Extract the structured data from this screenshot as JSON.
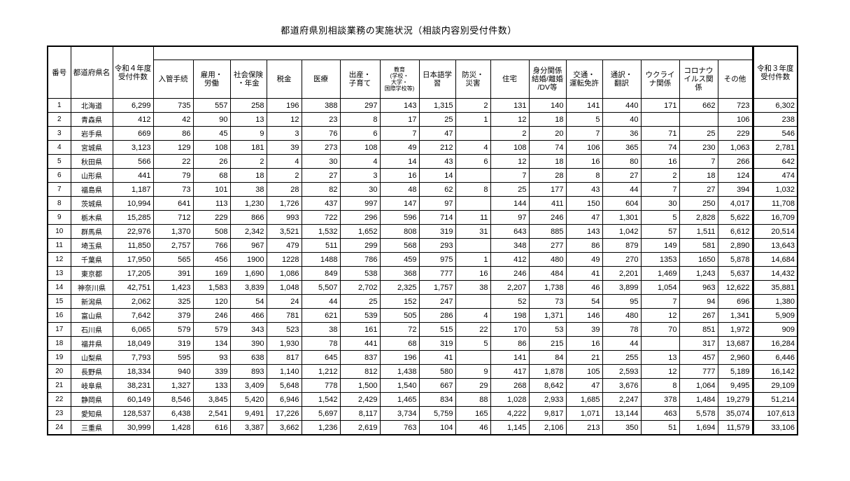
{
  "title": "都道府県別相談業務の実施状況（相談内容別受付件数）",
  "headers": {
    "no": "番号",
    "pref": "都道府県名",
    "r4": "令和４年度\n受付件数",
    "r3": "令和３年度\n受付件数",
    "categories": [
      "入管手続",
      "雇用・\n労働",
      "社会保険\n・年金",
      "税金",
      "医療",
      "出産・\n子育て",
      "教育\n(学校・\n大学・\n国際学校等)",
      "日本語学習",
      "防災・\n災害",
      "住宅",
      "身分関係\n結婚/離婚\n/DV等",
      "交通・\n運転免許",
      "通訳・\n翻訳",
      "ウクライ\nナ関係",
      "コロナウ\nイルス関\n係",
      "その他"
    ]
  },
  "rows": [
    [
      "1",
      "北海道",
      "6,299",
      "735",
      "557",
      "258",
      "196",
      "388",
      "297",
      "143",
      "1,315",
      "2",
      "131",
      "140",
      "141",
      "440",
      "171",
      "662",
      "723",
      "6,302"
    ],
    [
      "2",
      "青森県",
      "412",
      "42",
      "90",
      "13",
      "12",
      "23",
      "8",
      "17",
      "25",
      "1",
      "12",
      "18",
      "5",
      "40",
      "",
      "",
      "106",
      "238"
    ],
    [
      "3",
      "岩手県",
      "669",
      "86",
      "45",
      "9",
      "3",
      "76",
      "6",
      "7",
      "47",
      "",
      "2",
      "20",
      "7",
      "36",
      "71",
      "25",
      "229",
      "546"
    ],
    [
      "4",
      "宮城県",
      "3,123",
      "129",
      "108",
      "181",
      "39",
      "273",
      "108",
      "49",
      "212",
      "4",
      "108",
      "74",
      "106",
      "365",
      "74",
      "230",
      "1,063",
      "2,781"
    ],
    [
      "5",
      "秋田県",
      "566",
      "22",
      "26",
      "2",
      "4",
      "30",
      "4",
      "14",
      "43",
      "6",
      "12",
      "18",
      "16",
      "80",
      "16",
      "7",
      "266",
      "642"
    ],
    [
      "6",
      "山形県",
      "441",
      "79",
      "68",
      "18",
      "2",
      "27",
      "3",
      "16",
      "14",
      "",
      "7",
      "28",
      "8",
      "27",
      "2",
      "18",
      "124",
      "474"
    ],
    [
      "7",
      "福島県",
      "1,187",
      "73",
      "101",
      "38",
      "28",
      "82",
      "30",
      "48",
      "62",
      "8",
      "25",
      "177",
      "43",
      "44",
      "7",
      "27",
      "394",
      "1,032"
    ],
    [
      "8",
      "茨城県",
      "10,994",
      "641",
      "113",
      "1,230",
      "1,726",
      "437",
      "997",
      "147",
      "97",
      "",
      "144",
      "411",
      "150",
      "604",
      "30",
      "250",
      "4,017",
      "11,708"
    ],
    [
      "9",
      "栃木県",
      "15,285",
      "712",
      "229",
      "866",
      "993",
      "722",
      "296",
      "596",
      "714",
      "11",
      "97",
      "246",
      "47",
      "1,301",
      "5",
      "2,828",
      "5,622",
      "16,709"
    ],
    [
      "10",
      "群馬県",
      "22,976",
      "1,370",
      "508",
      "2,342",
      "3,521",
      "1,532",
      "1,652",
      "808",
      "319",
      "31",
      "643",
      "885",
      "143",
      "1,042",
      "57",
      "1,511",
      "6,612",
      "20,514"
    ],
    [
      "11",
      "埼玉県",
      "11,850",
      "2,757",
      "766",
      "967",
      "479",
      "511",
      "299",
      "568",
      "293",
      "",
      "348",
      "277",
      "86",
      "879",
      "149",
      "581",
      "2,890",
      "13,643"
    ],
    [
      "12",
      "千葉県",
      "17,950",
      "565",
      "456",
      "1900",
      "1228",
      "1488",
      "786",
      "459",
      "975",
      "1",
      "412",
      "480",
      "49",
      "270",
      "1353",
      "1650",
      "5,878",
      "14,684"
    ],
    [
      "13",
      "東京都",
      "17,205",
      "391",
      "169",
      "1,690",
      "1,086",
      "849",
      "538",
      "368",
      "777",
      "16",
      "246",
      "484",
      "41",
      "2,201",
      "1,469",
      "1,243",
      "5,637",
      "14,432"
    ],
    [
      "14",
      "神奈川県",
      "42,751",
      "1,423",
      "1,583",
      "3,839",
      "1,048",
      "5,507",
      "2,702",
      "2,325",
      "1,757",
      "38",
      "2,207",
      "1,738",
      "46",
      "3,899",
      "1,054",
      "963",
      "12,622",
      "35,881"
    ],
    [
      "15",
      "新潟県",
      "2,062",
      "325",
      "120",
      "54",
      "24",
      "44",
      "25",
      "152",
      "247",
      "",
      "52",
      "73",
      "54",
      "95",
      "7",
      "94",
      "696",
      "1,380"
    ],
    [
      "16",
      "富山県",
      "7,642",
      "379",
      "246",
      "466",
      "781",
      "621",
      "539",
      "505",
      "286",
      "4",
      "198",
      "1,371",
      "146",
      "480",
      "12",
      "267",
      "1,341",
      "5,909"
    ],
    [
      "17",
      "石川県",
      "6,065",
      "579",
      "579",
      "343",
      "523",
      "38",
      "161",
      "72",
      "515",
      "22",
      "170",
      "53",
      "39",
      "78",
      "70",
      "851",
      "1,972",
      "909"
    ],
    [
      "18",
      "福井県",
      "18,049",
      "319",
      "134",
      "390",
      "1,930",
      "78",
      "441",
      "68",
      "319",
      "5",
      "86",
      "215",
      "16",
      "44",
      "",
      "317",
      "13,687",
      "16,284"
    ],
    [
      "19",
      "山梨県",
      "7,793",
      "595",
      "93",
      "638",
      "817",
      "645",
      "837",
      "196",
      "41",
      "",
      "141",
      "84",
      "21",
      "255",
      "13",
      "457",
      "2,960",
      "6,446"
    ],
    [
      "20",
      "長野県",
      "18,334",
      "940",
      "339",
      "893",
      "1,140",
      "1,212",
      "812",
      "1,438",
      "580",
      "9",
      "417",
      "1,878",
      "105",
      "2,593",
      "12",
      "777",
      "5,189",
      "16,142"
    ],
    [
      "21",
      "岐阜県",
      "38,231",
      "1,327",
      "133",
      "3,409",
      "5,648",
      "778",
      "1,500",
      "1,540",
      "667",
      "29",
      "268",
      "8,642",
      "47",
      "3,676",
      "8",
      "1,064",
      "9,495",
      "29,109"
    ],
    [
      "22",
      "静岡県",
      "60,149",
      "8,546",
      "3,845",
      "5,420",
      "6,946",
      "1,542",
      "2,429",
      "1,465",
      "834",
      "88",
      "1,028",
      "2,933",
      "1,685",
      "2,247",
      "378",
      "1,484",
      "19,279",
      "51,214"
    ],
    [
      "23",
      "愛知県",
      "128,537",
      "6,438",
      "2,541",
      "9,491",
      "17,226",
      "5,697",
      "8,117",
      "3,734",
      "5,759",
      "165",
      "4,222",
      "9,817",
      "1,071",
      "13,144",
      "463",
      "5,578",
      "35,074",
      "107,613"
    ],
    [
      "24",
      "三重県",
      "30,999",
      "1,428",
      "616",
      "3,387",
      "3,662",
      "1,236",
      "2,619",
      "763",
      "104",
      "46",
      "1,145",
      "2,106",
      "213",
      "350",
      "51",
      "1,694",
      "11,579",
      "33,106"
    ]
  ]
}
